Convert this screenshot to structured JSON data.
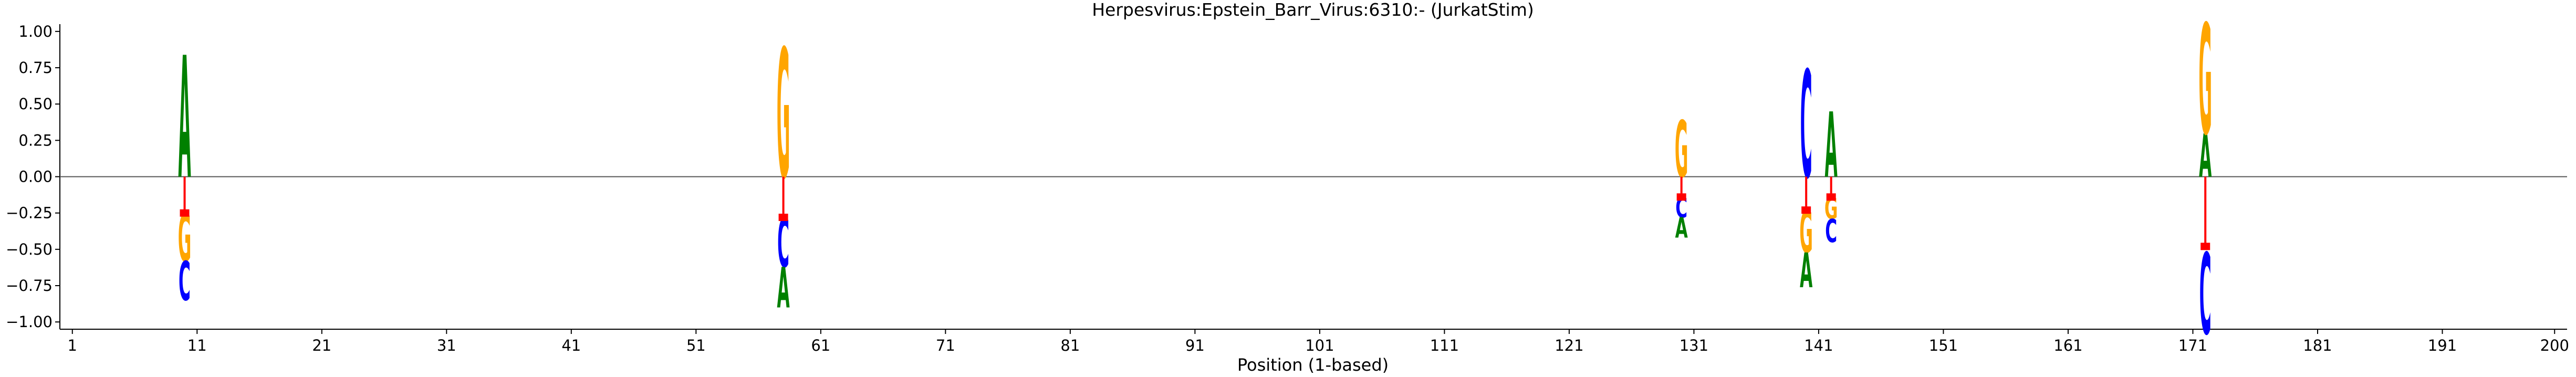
{
  "chart_data": {
    "type": "sequence-logo",
    "title": "Herpesvirus:Epstein_Barr_Virus:6310:-  (JurkatStim)",
    "xlabel": "Position (1-based)",
    "ylabel": "",
    "xlim": [
      0,
      201
    ],
    "ylim": [
      -1.05,
      1.05
    ],
    "x_ticks": [
      1,
      11,
      21,
      31,
      41,
      51,
      61,
      71,
      81,
      91,
      101,
      111,
      121,
      131,
      141,
      151,
      161,
      171,
      181,
      191,
      200
    ],
    "y_ticks": [
      1.0,
      0.75,
      0.5,
      0.25,
      0.0,
      -0.25,
      -0.5,
      -0.75,
      -1.0
    ],
    "y_tick_labels": [
      "1.00",
      "0.75",
      "0.50",
      "0.25",
      "0.00",
      "−0.25",
      "−0.50",
      "−0.75",
      "−1.00"
    ],
    "colors": {
      "A": "#008000",
      "C": "#0000ff",
      "G": "#ffa500",
      "T": "#ff0000",
      "marker": "#ff0000",
      "axis": "#000000",
      "zero_line": "#555555"
    },
    "positions": [
      {
        "pos": 10,
        "marker": -0.25,
        "up": [
          {
            "base": "A",
            "from": 0.0,
            "to": 0.84
          }
        ],
        "down": [
          {
            "base": "G",
            "from": -0.25,
            "to": -0.58
          },
          {
            "base": "C",
            "from": -0.58,
            "to": -0.85
          }
        ]
      },
      {
        "pos": 58,
        "marker": -0.28,
        "up": [
          {
            "base": "G",
            "from": 0.0,
            "to": 0.89
          }
        ],
        "down": [
          {
            "base": "C",
            "from": -0.28,
            "to": -0.62
          },
          {
            "base": "A",
            "from": -0.62,
            "to": -0.9
          }
        ]
      },
      {
        "pos": 130,
        "marker": -0.14,
        "up": [
          {
            "base": "G",
            "from": 0.0,
            "to": 0.39
          }
        ],
        "down": [
          {
            "base": "C",
            "from": -0.14,
            "to": -0.28
          },
          {
            "base": "A",
            "from": -0.28,
            "to": -0.42
          }
        ]
      },
      {
        "pos": 140,
        "marker": -0.23,
        "up": [
          {
            "base": "C",
            "from": 0.0,
            "to": 0.74
          }
        ],
        "down": [
          {
            "base": "G",
            "from": -0.23,
            "to": -0.52
          },
          {
            "base": "A",
            "from": -0.52,
            "to": -0.76
          }
        ]
      },
      {
        "pos": 142,
        "marker": -0.14,
        "up": [
          {
            "base": "A",
            "from": 0.0,
            "to": 0.45
          }
        ],
        "down": [
          {
            "base": "G",
            "from": -0.14,
            "to": -0.29
          },
          {
            "base": "C",
            "from": -0.29,
            "to": -0.45
          }
        ]
      },
      {
        "pos": 172,
        "marker": -0.48,
        "up": [
          {
            "base": "A",
            "from": 0.0,
            "to": 0.3
          },
          {
            "base": "G",
            "from": 0.3,
            "to": 1.06
          }
        ],
        "down": [
          {
            "base": "C",
            "from": -0.52,
            "to": -1.08
          }
        ]
      }
    ]
  }
}
